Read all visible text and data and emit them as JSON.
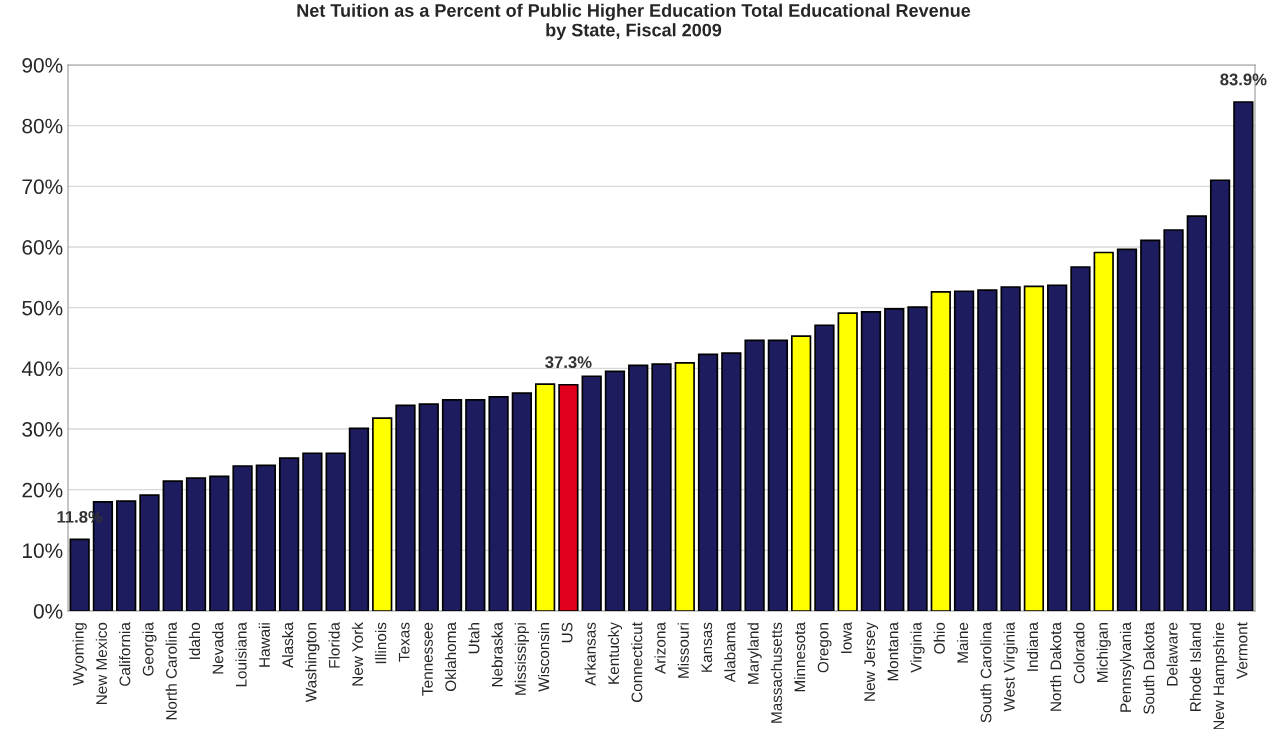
{
  "chart_data": {
    "type": "bar",
    "title": "Net Tuition as a Percent of Public Higher Education Total Educational Revenue\nby State, Fiscal 2009",
    "categories": [
      "Wyoming",
      "New Mexico",
      "California",
      "Georgia",
      "North Carolina",
      "Idaho",
      "Nevada",
      "Louisiana",
      "Hawaii",
      "Alaska",
      "Washington",
      "Florida",
      "New York",
      "Illinois",
      "Texas",
      "Tennessee",
      "Oklahoma",
      "Utah",
      "Nebraska",
      "Mississippi",
      "Wisconsin",
      "US",
      "Arkansas",
      "Kentucky",
      "Connecticut",
      "Arizona",
      "Missouri",
      "Kansas",
      "Alabama",
      "Maryland",
      "Massachusetts",
      "Minnesota",
      "Oregon",
      "Iowa",
      "New Jersey",
      "Montana",
      "Virginia",
      "Ohio",
      "Maine",
      "South Carolina",
      "West Virginia",
      "Indiana",
      "North Dakota",
      "Colorado",
      "Michigan",
      "Pennsylvania",
      "South Dakota",
      "Delaware",
      "Rhode Island",
      "New Hampshire",
      "Vermont"
    ],
    "values": [
      11.8,
      18.0,
      18.1,
      19.1,
      21.4,
      21.9,
      22.2,
      23.9,
      24.0,
      25.2,
      26.0,
      26.0,
      30.1,
      31.8,
      33.9,
      34.1,
      34.8,
      34.8,
      35.3,
      35.9,
      37.4,
      37.3,
      38.7,
      39.5,
      40.5,
      40.7,
      40.9,
      42.3,
      42.5,
      44.6,
      44.6,
      45.3,
      47.1,
      49.1,
      49.3,
      49.8,
      50.1,
      52.6,
      52.7,
      52.9,
      53.4,
      53.5,
      53.7,
      56.7,
      59.1,
      59.6,
      61.1,
      62.8,
      65.1,
      71.0,
      83.9
    ],
    "colors": [
      "#1c1c5e",
      "#1c1c5e",
      "#1c1c5e",
      "#1c1c5e",
      "#1c1c5e",
      "#1c1c5e",
      "#1c1c5e",
      "#1c1c5e",
      "#1c1c5e",
      "#1c1c5e",
      "#1c1c5e",
      "#1c1c5e",
      "#1c1c5e",
      "#ffff00",
      "#1c1c5e",
      "#1c1c5e",
      "#1c1c5e",
      "#1c1c5e",
      "#1c1c5e",
      "#1c1c5e",
      "#ffff00",
      "#e0001b",
      "#1c1c5e",
      "#1c1c5e",
      "#1c1c5e",
      "#1c1c5e",
      "#ffff00",
      "#1c1c5e",
      "#1c1c5e",
      "#1c1c5e",
      "#1c1c5e",
      "#ffff00",
      "#1c1c5e",
      "#ffff00",
      "#1c1c5e",
      "#1c1c5e",
      "#1c1c5e",
      "#ffff00",
      "#1c1c5e",
      "#1c1c5e",
      "#1c1c5e",
      "#ffff00",
      "#1c1c5e",
      "#1c1c5e",
      "#ffff00",
      "#1c1c5e",
      "#1c1c5e",
      "#1c1c5e",
      "#1c1c5e",
      "#1c1c5e",
      "#1c1c5e"
    ],
    "value_labels": [
      "11.8%",
      null,
      null,
      null,
      null,
      null,
      null,
      null,
      null,
      null,
      null,
      null,
      null,
      null,
      null,
      null,
      null,
      null,
      null,
      null,
      null,
      "37.3%",
      null,
      null,
      null,
      null,
      null,
      null,
      null,
      null,
      null,
      null,
      null,
      null,
      null,
      null,
      null,
      null,
      null,
      null,
      null,
      null,
      null,
      null,
      null,
      null,
      null,
      null,
      null,
      null,
      "83.9%"
    ],
    "ylim": [
      0,
      90
    ],
    "yticks": [
      {
        "value": 0,
        "label": "0%"
      },
      {
        "value": 10,
        "label": "10%"
      },
      {
        "value": 20,
        "label": "20%"
      },
      {
        "value": 30,
        "label": "30%"
      },
      {
        "value": 40,
        "label": "40%"
      },
      {
        "value": 50,
        "label": "50%"
      },
      {
        "value": 60,
        "label": "60%"
      },
      {
        "value": 70,
        "label": "70%"
      },
      {
        "value": 80,
        "label": "80%"
      },
      {
        "value": 90,
        "label": "90%"
      }
    ],
    "grid": "y",
    "legend": false
  }
}
